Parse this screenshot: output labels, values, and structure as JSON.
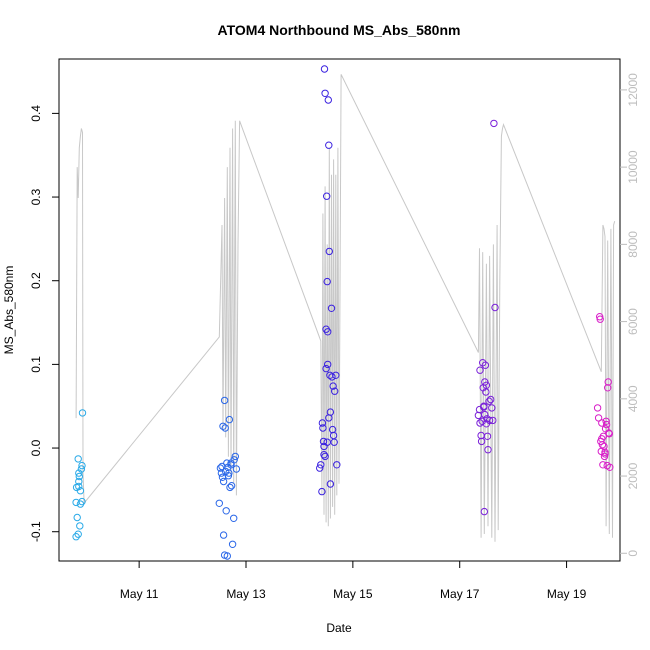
{
  "chart_data": {
    "type": "scatter",
    "title": "ATOM4 Northbound MS_Abs_580nm",
    "xlabel": "Date",
    "ylabel": "MS_Abs_580nm",
    "x_unit": "day of May",
    "xlim": [
      9.5,
      20.0
    ],
    "ylim": [
      -0.135,
      0.465
    ],
    "y2lim": [
      -200,
      12800
    ],
    "x_ticks": [
      {
        "value": 11,
        "label": "May 11"
      },
      {
        "value": 13,
        "label": "May 13"
      },
      {
        "value": 15,
        "label": "May 15"
      },
      {
        "value": 17,
        "label": "May 17"
      },
      {
        "value": 19,
        "label": "May 19"
      }
    ],
    "y_ticks": [
      {
        "value": -0.1,
        "label": "-0.1"
      },
      {
        "value": 0.0,
        "label": "0.0"
      },
      {
        "value": 0.1,
        "label": "0.1"
      },
      {
        "value": 0.2,
        "label": "0.2"
      },
      {
        "value": 0.3,
        "label": "0.3"
      },
      {
        "value": 0.4,
        "label": "0.4"
      }
    ],
    "y2_ticks": [
      {
        "value": 0,
        "label": "0"
      },
      {
        "value": 2000,
        "label": "2000"
      },
      {
        "value": 4000,
        "label": "4000"
      },
      {
        "value": 6000,
        "label": "6000"
      },
      {
        "value": 8000,
        "label": "8000"
      },
      {
        "value": 10000,
        "label": "10000"
      },
      {
        "value": 12000,
        "label": "12000"
      }
    ],
    "grid": false,
    "legend": "none",
    "line_color": "#c8c8c8",
    "line_series": [
      [
        9.82,
        3500
      ],
      [
        9.84,
        10000
      ],
      [
        9.86,
        9200
      ],
      [
        9.88,
        10500
      ],
      [
        9.9,
        10800
      ],
      [
        9.92,
        11000
      ],
      [
        9.94,
        10900
      ],
      [
        9.95,
        2100
      ],
      [
        9.97,
        1300
      ],
      [
        12.5,
        5600
      ],
      [
        12.55,
        8500
      ],
      [
        12.57,
        3200
      ],
      [
        12.6,
        9200
      ],
      [
        12.62,
        3000
      ],
      [
        12.65,
        10000
      ],
      [
        12.67,
        2500
      ],
      [
        12.7,
        10500
      ],
      [
        12.72,
        2000
      ],
      [
        12.75,
        11000
      ],
      [
        12.77,
        1800
      ],
      [
        12.8,
        11200
      ],
      [
        12.82,
        1500
      ],
      [
        12.85,
        8000
      ],
      [
        12.88,
        11200
      ],
      [
        14.4,
        5500
      ],
      [
        14.42,
        1500
      ],
      [
        14.44,
        8800
      ],
      [
        14.46,
        1000
      ],
      [
        14.48,
        9500
      ],
      [
        14.5,
        800
      ],
      [
        14.52,
        8000
      ],
      [
        14.54,
        700
      ],
      [
        14.56,
        10500
      ],
      [
        14.58,
        900
      ],
      [
        14.6,
        9800
      ],
      [
        14.62,
        1200
      ],
      [
        14.64,
        10200
      ],
      [
        14.66,
        1000
      ],
      [
        14.68,
        9800
      ],
      [
        14.7,
        1500
      ],
      [
        14.72,
        10500
      ],
      [
        14.74,
        1800
      ],
      [
        14.78,
        12400
      ],
      [
        17.35,
        5200
      ],
      [
        17.37,
        7900
      ],
      [
        17.4,
        400
      ],
      [
        17.43,
        7800
      ],
      [
        17.46,
        500
      ],
      [
        17.5,
        7500
      ],
      [
        17.53,
        700
      ],
      [
        17.56,
        7700
      ],
      [
        17.6,
        400
      ],
      [
        17.63,
        8000
      ],
      [
        17.66,
        300
      ],
      [
        17.7,
        8500
      ],
      [
        17.72,
        600
      ],
      [
        17.75,
        7000
      ],
      [
        17.78,
        10800
      ],
      [
        17.8,
        11000
      ],
      [
        17.82,
        11100
      ],
      [
        19.65,
        4700
      ],
      [
        19.68,
        8500
      ],
      [
        19.7,
        8400
      ],
      [
        19.72,
        8200
      ],
      [
        19.74,
        700
      ],
      [
        19.77,
        8100
      ],
      [
        19.8,
        500
      ],
      [
        19.83,
        8400
      ],
      [
        19.86,
        400
      ],
      [
        19.88,
        8500
      ],
      [
        19.9,
        8600
      ]
    ],
    "series": [
      {
        "color": "#2aaae8",
        "points": [
          [
            9.82,
            -0.106
          ],
          [
            9.84,
            -0.083
          ],
          [
            9.86,
            -0.013
          ],
          [
            9.86,
            -0.103
          ],
          [
            9.87,
            -0.03
          ],
          [
            9.87,
            -0.04
          ],
          [
            9.87,
            -0.046
          ],
          [
            9.88,
            -0.034
          ],
          [
            9.9,
            -0.051
          ],
          [
            9.9,
            -0.067
          ],
          [
            9.92,
            -0.025
          ],
          [
            9.93,
            -0.021
          ],
          [
            9.93,
            -0.064
          ],
          [
            9.94,
            0.042
          ],
          [
            9.82,
            -0.065
          ],
          [
            9.83,
            -0.047
          ],
          [
            9.89,
            -0.093
          ]
        ]
      },
      {
        "color": "#2a67e8",
        "points": [
          [
            12.5,
            -0.066
          ],
          [
            12.52,
            -0.024
          ],
          [
            12.54,
            -0.03
          ],
          [
            12.55,
            -0.022
          ],
          [
            12.56,
            -0.035
          ],
          [
            12.57,
            0.026
          ],
          [
            12.58,
            -0.104
          ],
          [
            12.6,
            -0.128
          ],
          [
            12.6,
            0.057
          ],
          [
            12.61,
            0.024
          ],
          [
            12.62,
            -0.028
          ],
          [
            12.63,
            -0.075
          ],
          [
            12.64,
            -0.018
          ],
          [
            12.65,
            -0.129
          ],
          [
            12.66,
            -0.023
          ],
          [
            12.67,
            -0.033
          ],
          [
            12.69,
            0.034
          ],
          [
            12.7,
            -0.047
          ],
          [
            12.72,
            -0.02
          ],
          [
            12.73,
            -0.045
          ],
          [
            12.75,
            -0.115
          ],
          [
            12.77,
            -0.084
          ],
          [
            12.78,
            -0.014
          ],
          [
            12.8,
            -0.01
          ],
          [
            12.82,
            -0.025
          ],
          [
            12.72,
            -0.018
          ],
          [
            12.68,
            -0.03
          ],
          [
            12.58,
            -0.04
          ]
        ]
      },
      {
        "color": "#3b22e0",
        "points": [
          [
            14.38,
            -0.024
          ],
          [
            14.4,
            -0.02
          ],
          [
            14.42,
            -0.052
          ],
          [
            14.43,
            0.03
          ],
          [
            14.44,
            0.024
          ],
          [
            14.45,
            0.008
          ],
          [
            14.46,
            -0.008
          ],
          [
            14.47,
            0.453
          ],
          [
            14.48,
            0.424
          ],
          [
            14.5,
            0.142
          ],
          [
            14.51,
            0.301
          ],
          [
            14.52,
            0.199
          ],
          [
            14.53,
            0.139
          ],
          [
            14.54,
            0.416
          ],
          [
            14.55,
            0.362
          ],
          [
            14.56,
            0.235
          ],
          [
            14.57,
            0.087
          ],
          [
            14.58,
            0.043
          ],
          [
            14.6,
            0.167
          ],
          [
            14.61,
            0.085
          ],
          [
            14.62,
            0.022
          ],
          [
            14.63,
            0.074
          ],
          [
            14.64,
            0.015
          ],
          [
            14.65,
            0.007
          ],
          [
            14.66,
            0.068
          ],
          [
            14.68,
            0.087
          ],
          [
            14.7,
            -0.02
          ],
          [
            14.5,
            0.095
          ],
          [
            14.53,
            0.1
          ],
          [
            14.55,
            0.036
          ],
          [
            14.46,
            0.002
          ],
          [
            14.58,
            -0.043
          ],
          [
            14.48,
            -0.01
          ],
          [
            14.52,
            0.007
          ]
        ]
      },
      {
        "color": "#7a20d9",
        "points": [
          [
            17.35,
            0.039
          ],
          [
            17.37,
            0.046
          ],
          [
            17.38,
            0.093
          ],
          [
            17.4,
            0.015
          ],
          [
            17.41,
            0.008
          ],
          [
            17.42,
            0.032
          ],
          [
            17.43,
            0.102
          ],
          [
            17.44,
            0.072
          ],
          [
            17.45,
            0.049
          ],
          [
            17.46,
            -0.076
          ],
          [
            17.47,
            0.079
          ],
          [
            17.48,
            0.099
          ],
          [
            17.49,
            0.067
          ],
          [
            17.5,
            0.029
          ],
          [
            17.51,
            0.035
          ],
          [
            17.52,
            0.014
          ],
          [
            17.53,
            -0.002
          ],
          [
            17.55,
            0.056
          ],
          [
            17.56,
            0.033
          ],
          [
            17.58,
            0.058
          ],
          [
            17.6,
            0.048
          ],
          [
            17.62,
            0.033
          ],
          [
            17.64,
            0.388
          ],
          [
            17.66,
            0.168
          ],
          [
            17.38,
            0.03
          ],
          [
            17.47,
            0.04
          ],
          [
            17.5,
            0.075
          ],
          [
            17.45,
            0.05
          ]
        ]
      },
      {
        "color": "#d91ec9",
        "points": [
          [
            19.58,
            0.048
          ],
          [
            19.6,
            0.036
          ],
          [
            19.62,
            0.157
          ],
          [
            19.63,
            0.154
          ],
          [
            19.64,
            0.008
          ],
          [
            19.65,
            -0.004
          ],
          [
            19.66,
            0.011
          ],
          [
            19.67,
            0.004
          ],
          [
            19.68,
            -0.02
          ],
          [
            19.69,
            0.014
          ],
          [
            19.7,
            0.002
          ],
          [
            19.71,
            -0.01
          ],
          [
            19.72,
            -0.007
          ],
          [
            19.73,
            0.023
          ],
          [
            19.74,
            0.032
          ],
          [
            19.75,
            0.028
          ],
          [
            19.76,
            -0.021
          ],
          [
            19.77,
            0.072
          ],
          [
            19.78,
            0.079
          ],
          [
            19.79,
            0.018
          ],
          [
            19.8,
            0.017
          ],
          [
            19.81,
            -0.023
          ],
          [
            19.72,
            -0.005
          ],
          [
            19.66,
            0.03
          ]
        ]
      }
    ]
  }
}
